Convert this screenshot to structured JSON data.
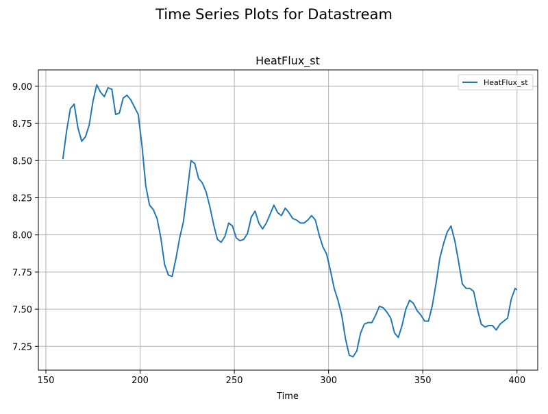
{
  "figure": {
    "suptitle": "Time Series Plots for Datastream"
  },
  "chart_data": {
    "type": "line",
    "title": "HeatFlux_st",
    "xlabel": "Time",
    "ylabel": "",
    "xlim": [
      146,
      411
    ],
    "ylim": [
      7.09,
      9.11
    ],
    "xticks": [
      150,
      200,
      250,
      300,
      350,
      400
    ],
    "xtick_labels": [
      "150",
      "200",
      "250",
      "300",
      "350",
      "400"
    ],
    "yticks": [
      7.25,
      7.5,
      7.75,
      8.0,
      8.25,
      8.5,
      8.75,
      9.0
    ],
    "ytick_labels": [
      "7.25",
      "7.50",
      "7.75",
      "8.00",
      "8.25",
      "8.50",
      "8.75",
      "9.00"
    ],
    "grid": true,
    "legend_position": "top-right",
    "series": [
      {
        "name": "HeatFlux_st",
        "color": "#1f77b4",
        "x": [
          159,
          161,
          163,
          165,
          167,
          169,
          171,
          173,
          175,
          177,
          179,
          181,
          183,
          185,
          187,
          189,
          191,
          193,
          195,
          197,
          199,
          201,
          203,
          205,
          207,
          209,
          211,
          213,
          215,
          217,
          219,
          221,
          223,
          225,
          227,
          229,
          231,
          233,
          235,
          237,
          239,
          241,
          243,
          245,
          247,
          249,
          251,
          253,
          255,
          257,
          259,
          261,
          263,
          265,
          267,
          269,
          271,
          273,
          275,
          277,
          279,
          281,
          283,
          285,
          287,
          289,
          291,
          293,
          295,
          297,
          299,
          301,
          303,
          305,
          307,
          309,
          311,
          313,
          315,
          317,
          319,
          321,
          323,
          325,
          327,
          329,
          331,
          333,
          335,
          337,
          339,
          341,
          343,
          345,
          347,
          349,
          351,
          353,
          355,
          357,
          359,
          361,
          363,
          365,
          367,
          369,
          371,
          373,
          375,
          377,
          379,
          381,
          383,
          385,
          387,
          389,
          391,
          393,
          395,
          397,
          399,
          400
        ],
        "values": [
          8.51,
          8.7,
          8.85,
          8.88,
          8.72,
          8.63,
          8.66,
          8.74,
          8.9,
          9.01,
          8.96,
          8.93,
          8.99,
          8.98,
          8.81,
          8.82,
          8.92,
          8.94,
          8.91,
          8.86,
          8.81,
          8.6,
          8.33,
          8.2,
          8.17,
          8.11,
          7.98,
          7.8,
          7.73,
          7.72,
          7.84,
          7.98,
          8.09,
          8.29,
          8.5,
          8.48,
          8.38,
          8.35,
          8.29,
          8.19,
          8.07,
          7.97,
          7.95,
          7.99,
          8.08,
          8.06,
          7.98,
          7.96,
          7.97,
          8.01,
          8.12,
          8.16,
          8.08,
          8.04,
          8.08,
          8.14,
          8.2,
          8.15,
          8.13,
          8.18,
          8.15,
          8.11,
          8.1,
          8.08,
          8.08,
          8.1,
          8.13,
          8.1,
          8.0,
          7.92,
          7.87,
          7.76,
          7.64,
          7.56,
          7.46,
          7.3,
          7.19,
          7.18,
          7.22,
          7.34,
          7.4,
          7.41,
          7.41,
          7.46,
          7.52,
          7.51,
          7.48,
          7.44,
          7.34,
          7.31,
          7.39,
          7.5,
          7.56,
          7.54,
          7.49,
          7.46,
          7.42,
          7.42,
          7.52,
          7.67,
          7.84,
          7.94,
          8.02,
          8.06,
          7.96,
          7.82,
          7.67,
          7.64,
          7.64,
          7.62,
          7.5,
          7.4,
          7.38,
          7.39,
          7.39,
          7.36,
          7.4,
          7.42,
          7.44,
          7.57,
          7.64,
          7.63
        ]
      }
    ]
  }
}
